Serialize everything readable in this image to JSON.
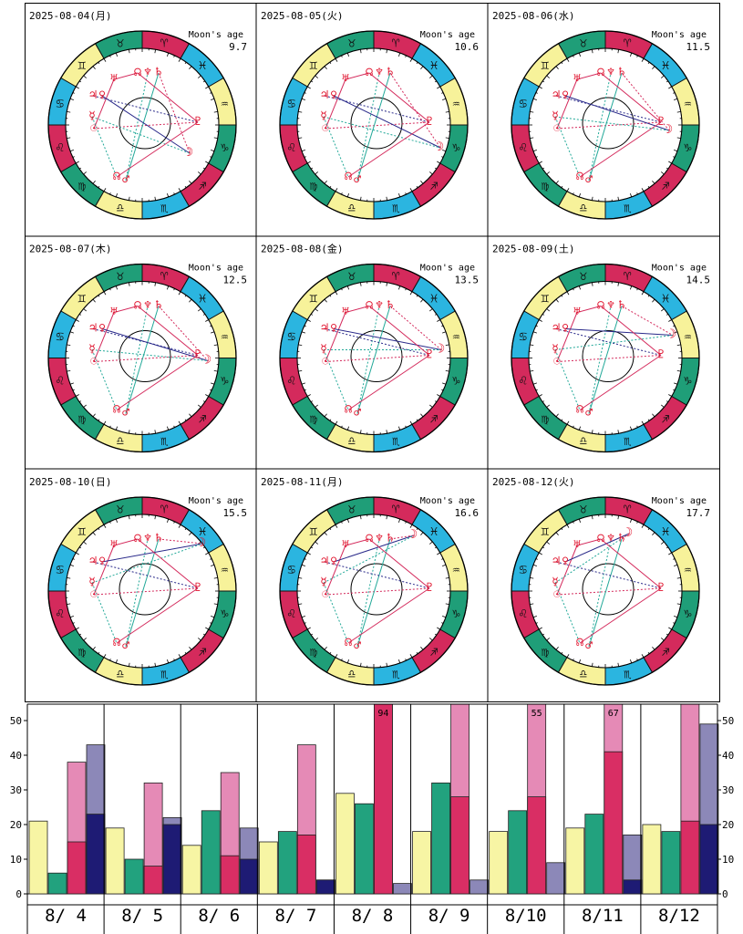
{
  "colors": {
    "red": "#d42a5c",
    "green": "#1f9e78",
    "blue": "#2bb5e0",
    "yellow": "#f7f29a",
    "planet": "#e0102a",
    "teal": "#21a898",
    "navy": "#2a2a8a",
    "bar_yellow": "#f7f5a4",
    "bar_green": "#22a27e",
    "bar_pink": "#e58ab6",
    "bar_red": "#d92e64",
    "bar_lav": "#8c88b8",
    "bar_navy": "#1e1b74"
  },
  "glyphs": {
    "signs": [
      "♈",
      "♉",
      "♊",
      "♋",
      "♌",
      "♍",
      "♎",
      "♏",
      "♐",
      "♑",
      "♒",
      "♓"
    ],
    "sun": "☉",
    "moon": "☽",
    "mercury": "☿",
    "venus": "♀",
    "mars": "♂",
    "jupiter": "♃",
    "uranus": "♅",
    "pluto": "♇",
    "node": "☊",
    "neptune": "♆",
    "saturn": "♄"
  },
  "moon_label": "Moon's age",
  "days": [
    {
      "date": "2025-08-04(月)",
      "age": "9.7"
    },
    {
      "date": "2025-08-05(火)",
      "age": "10.6"
    },
    {
      "date": "2025-08-06(水)",
      "age": "11.5"
    },
    {
      "date": "2025-08-07(木)",
      "age": "12.5"
    },
    {
      "date": "2025-08-08(金)",
      "age": "13.5"
    },
    {
      "date": "2025-08-09(土)",
      "age": "14.5"
    },
    {
      "date": "2025-08-10(日)",
      "age": "15.5"
    },
    {
      "date": "2025-08-11(月)",
      "age": "16.6"
    },
    {
      "date": "2025-08-12(火)",
      "age": "17.7"
    }
  ],
  "chart_data": {
    "type": "bar",
    "categories": [
      "8/ 4",
      "8/ 5",
      "8/ 6",
      "8/ 7",
      "8/ 8",
      "8/ 9",
      "8/10",
      "8/11",
      "8/12"
    ],
    "ylim": [
      0,
      50
    ],
    "yticks": [
      0,
      10,
      20,
      30,
      40,
      50
    ],
    "series": [
      {
        "values": [
          21,
          19,
          14,
          15,
          29,
          18,
          18,
          19,
          20
        ]
      },
      {
        "values": [
          6,
          10,
          24,
          18,
          26,
          32,
          24,
          23,
          18
        ]
      },
      {
        "values": [
          15,
          8,
          11,
          17,
          51,
          28,
          28,
          41,
          21
        ],
        "total": [
          38,
          32,
          35,
          43,
          94,
          54,
          55,
          67,
          51
        ]
      },
      {
        "values": [
          23,
          20,
          10,
          4,
          0,
          0,
          0,
          4,
          20
        ],
        "total": [
          43,
          22,
          19,
          4,
          3,
          4,
          9,
          17,
          49
        ]
      }
    ],
    "overflow_labels": [
      "",
      "",
      "",
      "",
      "94",
      "",
      "55",
      "67",
      ""
    ]
  }
}
